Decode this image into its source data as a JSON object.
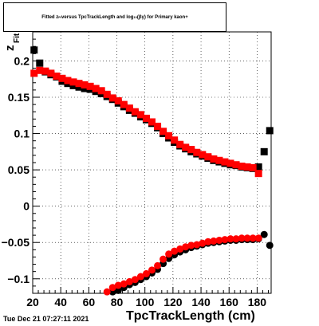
{
  "header": {
    "title_parts": [
      "Fitted  z",
      "Pi",
      "  versus TpcTrackLength and log",
      "10",
      "(βγ) for Primary kaon+"
    ],
    "date": "Tue Dec 21 07:27:11 2021"
  },
  "colors": {
    "series_a": "#000000",
    "series_b": "#ff0000",
    "grid": "#000000"
  },
  "chart_data": {
    "type": "scatter",
    "title": "Fitted z_Pi versus TpcTrackLength and log10(βγ) for Primary kaon+",
    "xlabel": "TpcTrackLength (cm)",
    "ylabel": "z_Fit",
    "xlim": [
      20,
      190
    ],
    "ylim": [
      -0.12,
      0.24
    ],
    "x_ticks": [
      20,
      40,
      60,
      80,
      100,
      120,
      140,
      160,
      180
    ],
    "y_ticks": [
      -0.1,
      -0.05,
      0,
      0.05,
      0.1,
      0.15,
      0.2
    ],
    "x_tick_labels": [
      "20",
      "40",
      "60",
      "80",
      "100",
      "120",
      "140",
      "160",
      "180"
    ],
    "y_tick_labels": [
      "−0.1",
      "−0.05",
      "0",
      "0.05",
      "0.1",
      "0.15",
      "0.2"
    ],
    "grid": true,
    "series": [
      {
        "marker": "square",
        "color": "#000000",
        "points": [
          [
            21,
            0.215
          ],
          [
            25,
            0.197
          ],
          [
            29,
            0.185
          ],
          [
            33,
            0.181
          ],
          [
            37,
            0.178
          ],
          [
            41,
            0.172
          ],
          [
            45,
            0.169
          ],
          [
            49,
            0.166
          ],
          [
            53,
            0.164
          ],
          [
            57,
            0.162
          ],
          [
            61,
            0.161
          ],
          [
            65,
            0.158
          ],
          [
            69,
            0.155
          ],
          [
            73,
            0.151
          ],
          [
            77,
            0.147
          ],
          [
            81,
            0.142
          ],
          [
            85,
            0.137
          ],
          [
            89,
            0.132
          ],
          [
            93,
            0.128
          ],
          [
            97,
            0.123
          ],
          [
            101,
            0.119
          ],
          [
            105,
            0.114
          ],
          [
            109,
            0.108
          ],
          [
            113,
            0.1
          ],
          [
            117,
            0.094
          ],
          [
            121,
            0.088
          ],
          [
            125,
            0.083
          ],
          [
            129,
            0.079
          ],
          [
            133,
            0.075
          ],
          [
            137,
            0.072
          ],
          [
            141,
            0.069
          ],
          [
            145,
            0.066
          ],
          [
            149,
            0.063
          ],
          [
            153,
            0.061
          ],
          [
            157,
            0.059
          ],
          [
            161,
            0.057
          ],
          [
            165,
            0.056
          ],
          [
            169,
            0.054
          ],
          [
            173,
            0.053
          ],
          [
            177,
            0.052
          ],
          [
            181,
            0.054
          ],
          [
            185,
            0.075
          ],
          [
            189,
            0.104
          ]
        ]
      },
      {
        "marker": "square",
        "color": "#ff0000",
        "points": [
          [
            21,
            0.183
          ],
          [
            25,
            0.187
          ],
          [
            29,
            0.186
          ],
          [
            33,
            0.183
          ],
          [
            37,
            0.179
          ],
          [
            41,
            0.176
          ],
          [
            45,
            0.173
          ],
          [
            49,
            0.171
          ],
          [
            53,
            0.169
          ],
          [
            57,
            0.167
          ],
          [
            61,
            0.165
          ],
          [
            65,
            0.162
          ],
          [
            69,
            0.159
          ],
          [
            73,
            0.154
          ],
          [
            77,
            0.149
          ],
          [
            81,
            0.145
          ],
          [
            85,
            0.14
          ],
          [
            89,
            0.135
          ],
          [
            93,
            0.13
          ],
          [
            97,
            0.126
          ],
          [
            101,
            0.121
          ],
          [
            105,
            0.116
          ],
          [
            109,
            0.11
          ],
          [
            113,
            0.103
          ],
          [
            117,
            0.097
          ],
          [
            121,
            0.091
          ],
          [
            125,
            0.085
          ],
          [
            129,
            0.081
          ],
          [
            133,
            0.078
          ],
          [
            137,
            0.074
          ],
          [
            141,
            0.071
          ],
          [
            145,
            0.068
          ],
          [
            149,
            0.065
          ],
          [
            153,
            0.063
          ],
          [
            157,
            0.061
          ],
          [
            161,
            0.059
          ],
          [
            165,
            0.057
          ],
          [
            169,
            0.055
          ],
          [
            173,
            0.054
          ],
          [
            177,
            0.053
          ],
          [
            181,
            0.045
          ]
        ]
      },
      {
        "marker": "circle",
        "color": "#000000",
        "points": [
          [
            77,
            -0.118
          ],
          [
            81,
            -0.116
          ],
          [
            85,
            -0.112
          ],
          [
            89,
            -0.108
          ],
          [
            93,
            -0.105
          ],
          [
            97,
            -0.101
          ],
          [
            101,
            -0.097
          ],
          [
            105,
            -0.092
          ],
          [
            109,
            -0.087
          ],
          [
            113,
            -0.079
          ],
          [
            117,
            -0.072
          ],
          [
            121,
            -0.067
          ],
          [
            125,
            -0.063
          ],
          [
            129,
            -0.06
          ],
          [
            133,
            -0.057
          ],
          [
            137,
            -0.055
          ],
          [
            141,
            -0.053
          ],
          [
            145,
            -0.051
          ],
          [
            149,
            -0.05
          ],
          [
            153,
            -0.049
          ],
          [
            157,
            -0.048
          ],
          [
            161,
            -0.047
          ],
          [
            165,
            -0.047
          ],
          [
            169,
            -0.046
          ],
          [
            173,
            -0.046
          ],
          [
            177,
            -0.046
          ],
          [
            181,
            -0.045
          ],
          [
            185,
            -0.039
          ],
          [
            189,
            -0.054
          ]
        ]
      },
      {
        "marker": "circle",
        "color": "#ff0000",
        "points": [
          [
            73,
            -0.118
          ],
          [
            77,
            -0.112
          ],
          [
            81,
            -0.109
          ],
          [
            85,
            -0.107
          ],
          [
            89,
            -0.104
          ],
          [
            93,
            -0.101
          ],
          [
            97,
            -0.097
          ],
          [
            101,
            -0.093
          ],
          [
            105,
            -0.088
          ],
          [
            109,
            -0.082
          ],
          [
            113,
            -0.073
          ],
          [
            117,
            -0.066
          ],
          [
            121,
            -0.062
          ],
          [
            125,
            -0.059
          ],
          [
            129,
            -0.056
          ],
          [
            133,
            -0.054
          ],
          [
            137,
            -0.053
          ],
          [
            141,
            -0.051
          ],
          [
            145,
            -0.049
          ],
          [
            149,
            -0.048
          ],
          [
            153,
            -0.047
          ],
          [
            157,
            -0.046
          ],
          [
            161,
            -0.045
          ],
          [
            165,
            -0.045
          ],
          [
            169,
            -0.044
          ],
          [
            173,
            -0.044
          ],
          [
            177,
            -0.044
          ],
          [
            181,
            -0.044
          ]
        ]
      }
    ]
  }
}
